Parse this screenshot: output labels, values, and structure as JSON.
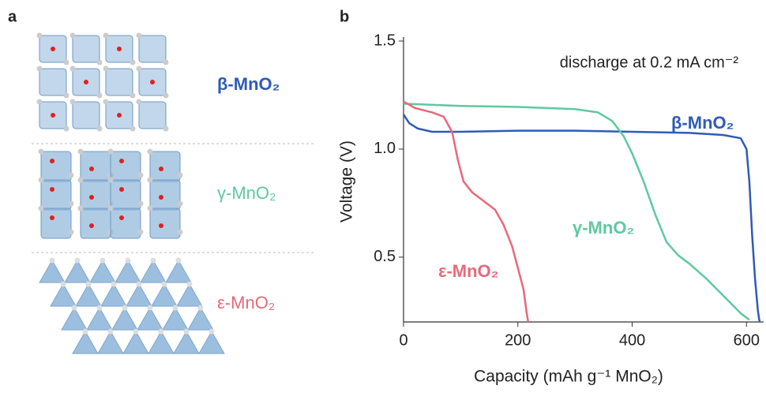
{
  "chart_data": {
    "type": "line",
    "panel_labels": [
      "a",
      "b"
    ],
    "annotation": "discharge at 0.2 mA cm⁻²",
    "xlabel": "Capacity (mAh g⁻¹ MnO₂)",
    "ylabel": "Voltage (V)",
    "xlim": [
      0,
      630
    ],
    "ylim": [
      0.2,
      1.5
    ],
    "xticks": [
      0,
      200,
      400,
      600
    ],
    "yticks": [
      0.5,
      {
        "value": 1,
        "label": "1.0"
      },
      1.5
    ],
    "series": [
      {
        "name": "β-MnO₂",
        "color": "#2f5bb7",
        "x": [
          0,
          10,
          25,
          50,
          100,
          200,
          300,
          400,
          500,
          560,
          590,
          600,
          605,
          610,
          615,
          620,
          623
        ],
        "values": [
          1.16,
          1.12,
          1.095,
          1.08,
          1.08,
          1.085,
          1.085,
          1.08,
          1.075,
          1.065,
          1.05,
          1.0,
          0.85,
          0.6,
          0.4,
          0.25,
          0.2
        ]
      },
      {
        "name": "γ-MnO₂",
        "color": "#5ec9a0",
        "x": [
          0,
          100,
          200,
          300,
          340,
          365,
          385,
          400,
          420,
          440,
          460,
          480,
          500,
          530,
          560,
          590,
          605
        ],
        "values": [
          1.21,
          1.2,
          1.195,
          1.185,
          1.17,
          1.13,
          1.06,
          0.98,
          0.85,
          0.7,
          0.57,
          0.51,
          0.47,
          0.4,
          0.32,
          0.24,
          0.21
        ]
      },
      {
        "name": "ε-MnO₂",
        "color": "#e8697a",
        "x": [
          0,
          20,
          50,
          70,
          85,
          95,
          105,
          120,
          140,
          160,
          175,
          190,
          200,
          210,
          215,
          218
        ],
        "values": [
          1.22,
          1.19,
          1.17,
          1.15,
          1.08,
          0.95,
          0.85,
          0.8,
          0.76,
          0.72,
          0.65,
          0.55,
          0.45,
          0.35,
          0.25,
          0.2
        ]
      }
    ]
  }
}
